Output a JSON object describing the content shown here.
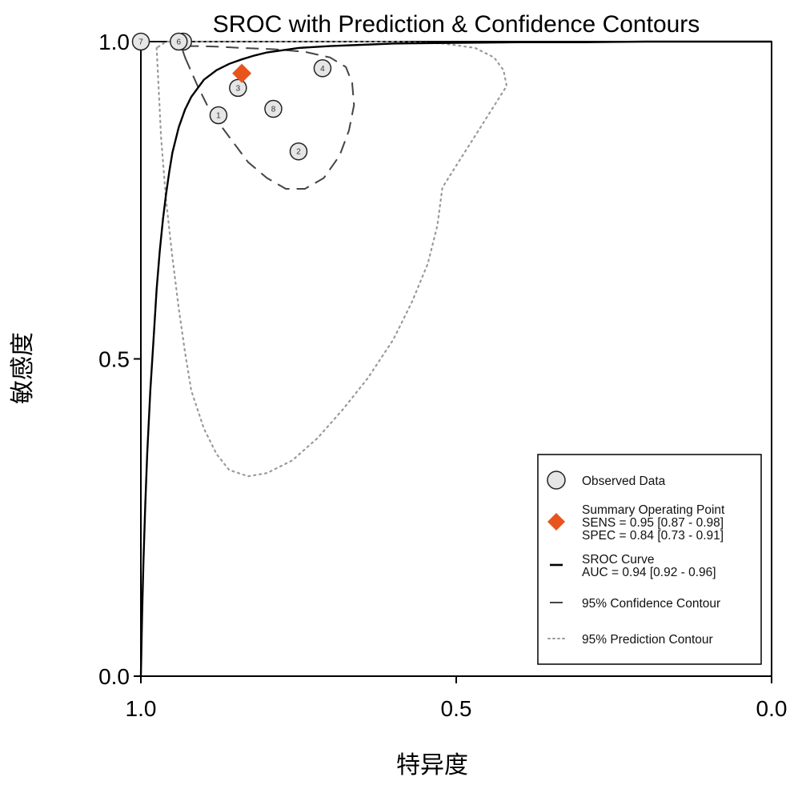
{
  "chart_data": {
    "type": "scatter",
    "title": "SROC with Prediction & Confidence Contours",
    "xlabel": "特异度",
    "ylabel": "敏感度",
    "xlim": [
      1.0,
      0.0
    ],
    "ylim": [
      0.0,
      1.0
    ],
    "x_reversed": true,
    "x_ticks": [
      "1.0",
      "0.5",
      "0.0"
    ],
    "y_ticks": [
      "0.0",
      "0.5",
      "1.0"
    ],
    "grid": false,
    "legend_position": "bottom-right",
    "observed_data": [
      {
        "label": "1",
        "specificity": 0.877,
        "sensitivity": 0.884
      },
      {
        "label": "2",
        "specificity": 0.75,
        "sensitivity": 0.827
      },
      {
        "label": "3",
        "specificity": 0.846,
        "sensitivity": 0.927
      },
      {
        "label": "4",
        "specificity": 0.712,
        "sensitivity": 0.958
      },
      {
        "label": "5",
        "specificity": 0.933,
        "sensitivity": 1.0
      },
      {
        "label": "6",
        "specificity": 0.94,
        "sensitivity": 1.0
      },
      {
        "label": "7",
        "specificity": 1.0,
        "sensitivity": 1.0
      },
      {
        "label": "8",
        "specificity": 0.79,
        "sensitivity": 0.894
      }
    ],
    "summary_point": {
      "specificity": 0.84,
      "sensitivity": 0.95,
      "color": "#e8541c"
    },
    "sroc_curve": {
      "specificity": [
        1.0,
        0.999,
        0.998,
        0.996,
        0.993,
        0.99,
        0.985,
        0.98,
        0.975,
        0.97,
        0.965,
        0.96,
        0.955,
        0.95,
        0.94,
        0.93,
        0.92,
        0.9,
        0.88,
        0.86,
        0.84,
        0.82,
        0.8,
        0.75,
        0.7,
        0.65,
        0.6,
        0.5,
        0.4,
        0.3,
        0.2,
        0.1,
        0.0
      ],
      "sensitivity": [
        0.0,
        0.05,
        0.1,
        0.18,
        0.27,
        0.35,
        0.45,
        0.53,
        0.61,
        0.67,
        0.72,
        0.76,
        0.795,
        0.825,
        0.865,
        0.893,
        0.913,
        0.94,
        0.955,
        0.965,
        0.972,
        0.978,
        0.983,
        0.99,
        0.993,
        0.995,
        0.997,
        0.998,
        0.999,
        0.999,
        1.0,
        1.0,
        1.0
      ]
    },
    "confidence_contour": {
      "specificity": [
        0.93,
        0.91,
        0.89,
        0.86,
        0.83,
        0.8,
        0.77,
        0.74,
        0.71,
        0.685,
        0.67,
        0.662,
        0.665,
        0.675,
        0.7,
        0.74,
        0.79,
        0.84,
        0.88,
        0.91,
        0.925,
        0.935,
        0.93
      ],
      "sensitivity": [
        0.975,
        0.93,
        0.89,
        0.85,
        0.81,
        0.785,
        0.768,
        0.768,
        0.785,
        0.82,
        0.86,
        0.9,
        0.935,
        0.96,
        0.975,
        0.984,
        0.988,
        0.99,
        0.992,
        0.993,
        0.993,
        0.99,
        0.975
      ]
    },
    "prediction_contour": {
      "specificity": [
        0.975,
        0.972,
        0.968,
        0.96,
        0.95,
        0.94,
        0.93,
        0.92,
        0.9,
        0.88,
        0.86,
        0.83,
        0.8,
        0.76,
        0.72,
        0.68,
        0.64,
        0.6,
        0.57,
        0.545,
        0.53,
        0.522,
        0.42,
        0.425,
        0.44,
        0.47,
        0.52,
        0.6,
        0.7,
        0.8,
        0.9,
        0.96,
        0.975
      ],
      "sensitivity": [
        0.99,
        0.93,
        0.85,
        0.75,
        0.66,
        0.58,
        0.51,
        0.45,
        0.39,
        0.35,
        0.325,
        0.315,
        0.32,
        0.34,
        0.375,
        0.42,
        0.47,
        0.53,
        0.59,
        0.65,
        0.71,
        0.77,
        0.93,
        0.955,
        0.975,
        0.99,
        0.997,
        1.0,
        1.0,
        1.0,
        1.0,
        1.0,
        0.99
      ]
    },
    "legend": [
      {
        "key": "observed",
        "lines": [
          "Observed Data"
        ]
      },
      {
        "key": "summary",
        "lines": [
          "Summary Operating Point",
          "SENS = 0.95 [0.87 - 0.98]",
          "SPEC = 0.84 [0.73 - 0.91]"
        ]
      },
      {
        "key": "sroc",
        "lines": [
          "SROC Curve",
          "AUC = 0.94 [0.92 - 0.96]"
        ]
      },
      {
        "key": "confidence",
        "lines": [
          "95% Confidence Contour"
        ]
      },
      {
        "key": "prediction",
        "lines": [
          "95% Prediction Contour"
        ]
      }
    ],
    "colors": {
      "summary_marker": "#e8541c",
      "observed_fill": "#e6e6e6",
      "sroc_line": "#000000",
      "confidence_line": "#444444",
      "prediction_line": "#9a9a9a"
    }
  }
}
